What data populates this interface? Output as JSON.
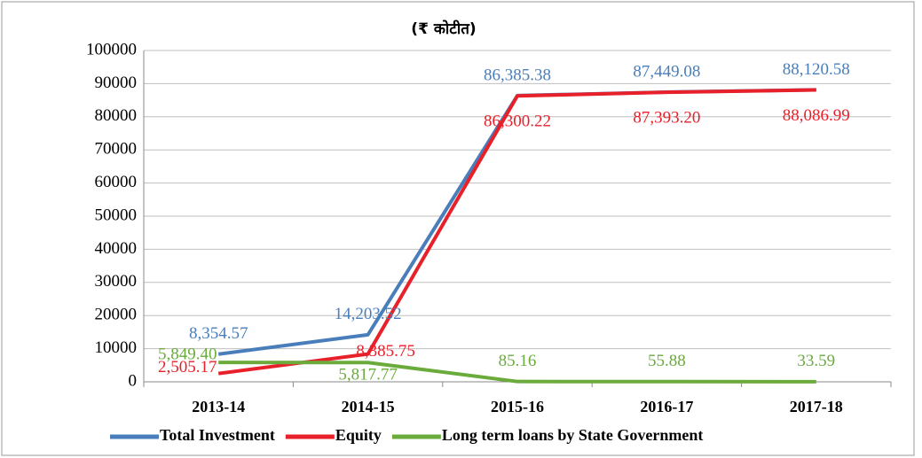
{
  "chart_data": {
    "type": "line",
    "title": "(₹ कोटीत)",
    "categories": [
      "2013-14",
      "2014-15",
      "2015-16",
      "2016-17",
      "2017-18"
    ],
    "series": [
      {
        "name": "Total Investment",
        "color": "#4a7ebb",
        "values": [
          8354.57,
          14203.52,
          86385.38,
          87449.08,
          88120.58
        ],
        "value_labels": [
          "8,354.57",
          "14,203.52",
          "86,385.38",
          "87,449.08",
          "88,120.58"
        ]
      },
      {
        "name": "Equity",
        "color": "#e8202a",
        "values": [
          2505.17,
          8385.75,
          86300.22,
          87393.2,
          88086.99
        ],
        "value_labels": [
          "2,505.17",
          "8,385.75",
          "86,300.22",
          "87,393.20",
          "88,086.99"
        ]
      },
      {
        "name": "Long term loans by State Government",
        "color": "#6aab3c",
        "values": [
          5849.4,
          5817.77,
          85.16,
          55.88,
          33.59
        ],
        "value_labels": [
          "5,849.40",
          "5,817.77",
          "85.16",
          "55.88",
          "33.59"
        ]
      }
    ],
    "ylim": [
      0,
      100000
    ],
    "yticks": [
      0,
      10000,
      20000,
      30000,
      40000,
      50000,
      60000,
      70000,
      80000,
      90000,
      100000
    ],
    "grid": true,
    "legend": "bottom"
  }
}
